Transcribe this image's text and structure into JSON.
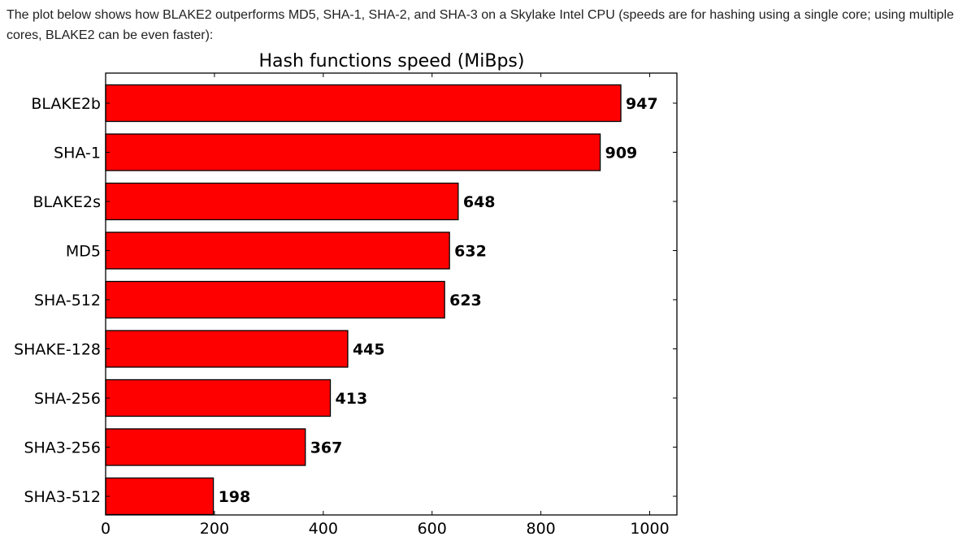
{
  "page": {
    "intro_text": "The plot below shows how BLAKE2 outperforms MD5, SHA-1, SHA-2, and SHA-3 on a Skylake Intel CPU (speeds are for hashing using a single core; using multiple cores, BLAKE2 can be even faster):"
  },
  "chart_data": {
    "type": "bar",
    "orientation": "horizontal",
    "title": "Hash functions speed (MiBps)",
    "xlabel": "",
    "ylabel": "",
    "categories": [
      "BLAKE2b",
      "SHA-1",
      "BLAKE2s",
      "MD5",
      "SHA-512",
      "SHAKE-128",
      "SHA-256",
      "SHA3-256",
      "SHA3-512"
    ],
    "values": [
      947,
      909,
      648,
      632,
      623,
      445,
      413,
      367,
      198
    ],
    "xlim": [
      0,
      1050
    ],
    "xticks": [
      0,
      200,
      400,
      600,
      800,
      1000
    ],
    "bar_color": "#ff0000",
    "bar_edge_color": "#000000",
    "grid": false,
    "value_labels": true
  }
}
